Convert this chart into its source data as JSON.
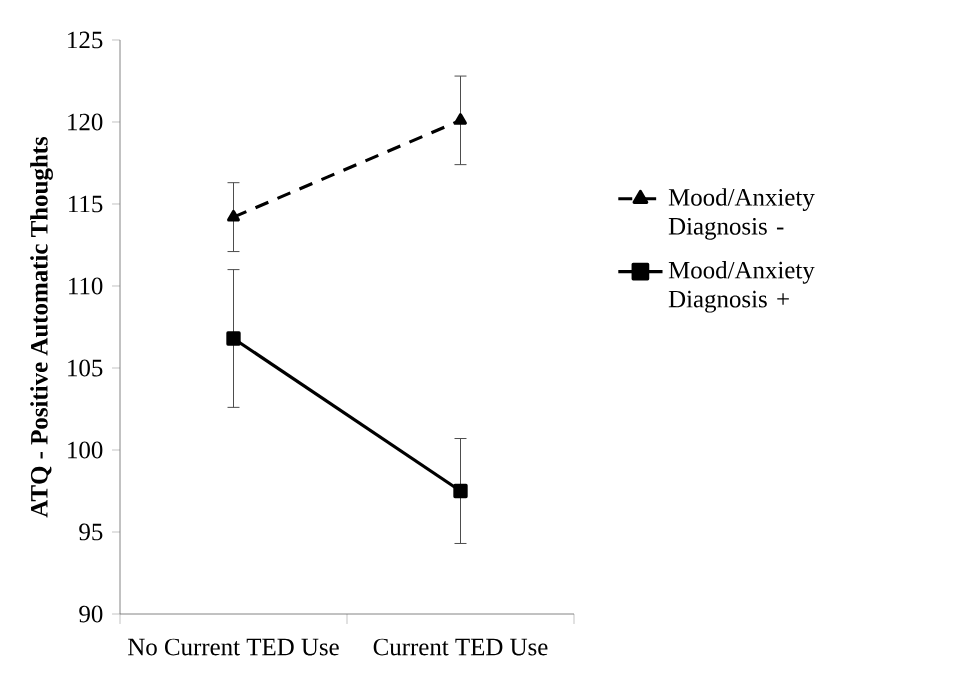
{
  "chart_data": {
    "type": "line",
    "ylabel": "ATQ - Positive Automatic Thoughts",
    "categories": [
      "No Current TED Use",
      "Current TED Use"
    ],
    "series": [
      {
        "name": "Mood/Anxiety Diagnosis -",
        "color": "#000000",
        "values": [
          114.2,
          120.1
        ],
        "errors": [
          2.1,
          2.7
        ],
        "marker": "triangle",
        "line_style": "dashed"
      },
      {
        "name": "Mood/Anxiety Diagnosis +",
        "color": "#000000",
        "values": [
          106.8,
          97.5
        ],
        "errors": [
          4.2,
          3.2
        ],
        "marker": "square",
        "line_style": "solid"
      }
    ],
    "ylim": [
      90,
      125
    ],
    "yticks": [
      90,
      95,
      100,
      105,
      110,
      115,
      120,
      125
    ],
    "legend": "right",
    "grid": false
  }
}
